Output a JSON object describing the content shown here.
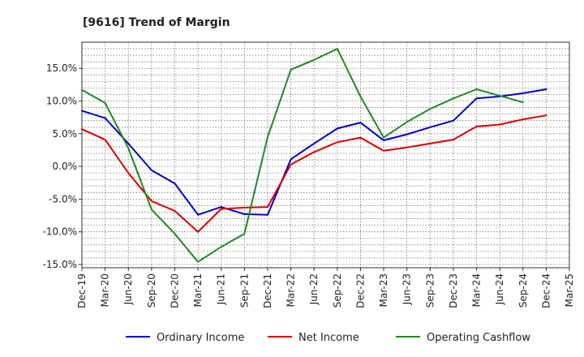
{
  "chart_data": {
    "type": "line",
    "title": "[9616]  Trend of Margin",
    "xlabel": "",
    "ylabel": "",
    "x": [
      "Dec-19",
      "Mar-20",
      "Jun-20",
      "Sep-20",
      "Dec-20",
      "Mar-21",
      "Jun-21",
      "Sep-21",
      "Dec-21",
      "Mar-22",
      "Jun-22",
      "Sep-22",
      "Dec-22",
      "Mar-23",
      "Jun-23",
      "Sep-23",
      "Dec-23",
      "Mar-24",
      "Jun-24",
      "Sep-24",
      "Dec-24",
      "Mar-25"
    ],
    "ylim": [
      -15.5,
      19.0
    ],
    "yticks": [
      15,
      10,
      5,
      0,
      -5,
      -10,
      -15
    ],
    "ytick_labels": [
      "15.0%",
      "10.0%",
      "5.0%",
      "0.0%",
      "-5.0%",
      "-10.0%",
      "-15.0%"
    ],
    "grid": true,
    "legend_position": "bottom",
    "series": [
      {
        "name": "Ordinary Income",
        "color": "#0000cc",
        "values": [
          8.5,
          7.4,
          3.5,
          -0.6,
          -2.6,
          -7.4,
          -6.2,
          -7.3,
          -7.4,
          1.1,
          3.5,
          5.8,
          6.7,
          4.0,
          4.9,
          6.0,
          7.0,
          10.4,
          10.7,
          11.2,
          11.8,
          null
        ]
      },
      {
        "name": "Net Income",
        "color": "#dd0000",
        "values": [
          5.7,
          4.1,
          -1.0,
          -5.3,
          -6.8,
          -10.0,
          -6.5,
          -6.3,
          -6.2,
          0.3,
          2.2,
          3.7,
          4.4,
          2.4,
          2.9,
          3.5,
          4.1,
          6.1,
          6.4,
          7.2,
          7.8,
          null
        ]
      },
      {
        "name": "Operating Cashflow",
        "color": "#228822",
        "values": [
          11.7,
          9.7,
          2.8,
          -6.6,
          -10.3,
          -14.6,
          -12.3,
          -10.3,
          4.5,
          14.8,
          16.3,
          18.0,
          10.7,
          4.4,
          6.8,
          8.8,
          10.4,
          11.8,
          10.8,
          9.8,
          null,
          null
        ]
      }
    ]
  }
}
